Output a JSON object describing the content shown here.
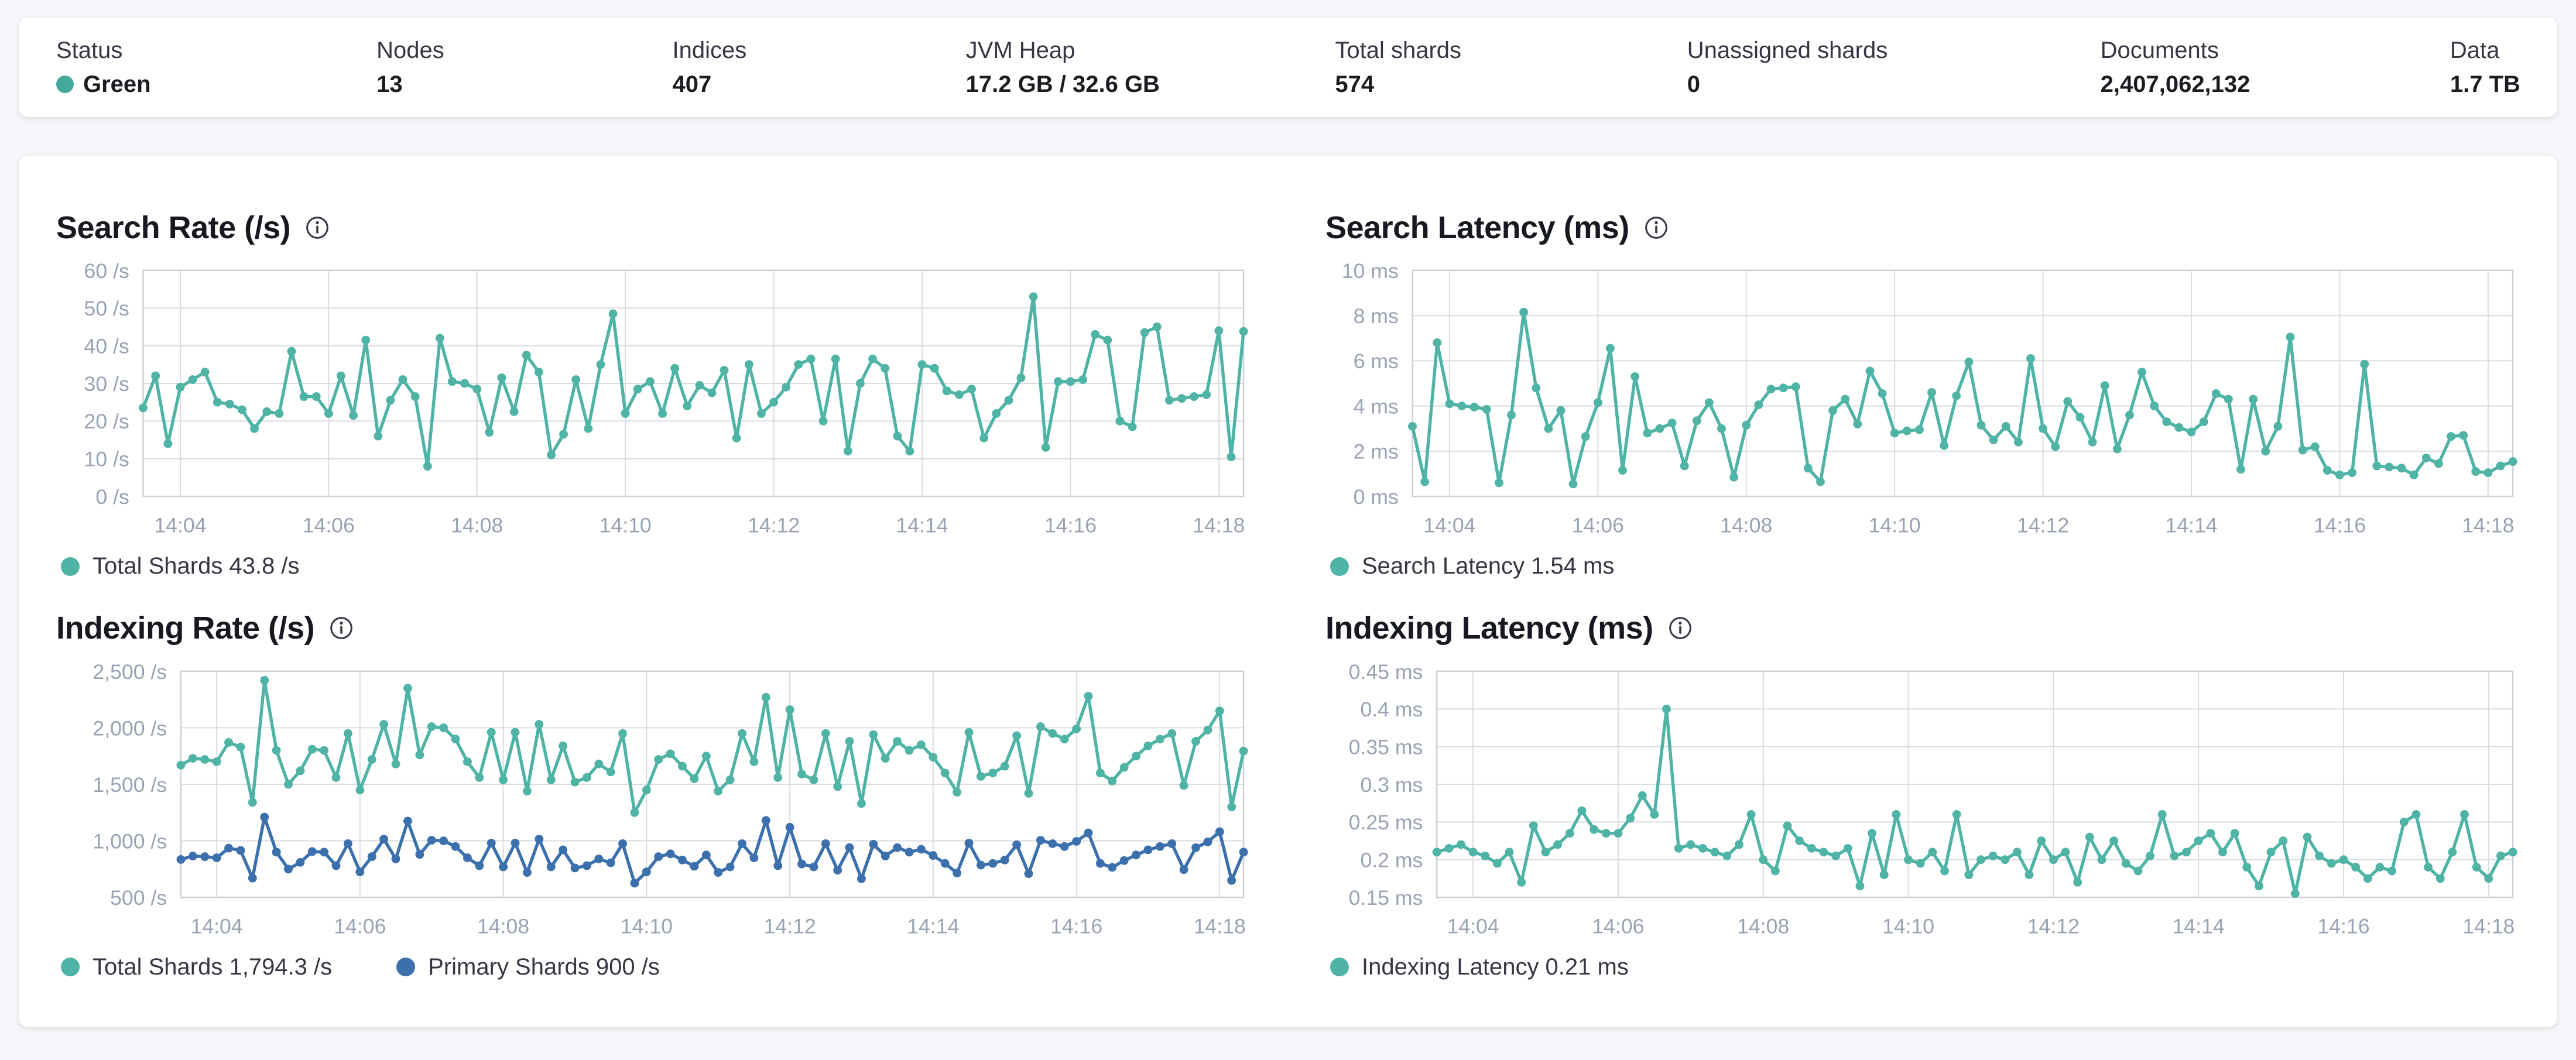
{
  "status_bar": {
    "items": [
      {
        "label": "Status",
        "value": "Green",
        "dot_color": "#45a99c"
      },
      {
        "label": "Nodes",
        "value": "13"
      },
      {
        "label": "Indices",
        "value": "407"
      },
      {
        "label": "JVM Heap",
        "value": "17.2 GB / 32.6 GB"
      },
      {
        "label": "Total shards",
        "value": "574"
      },
      {
        "label": "Unassigned shards",
        "value": "0"
      },
      {
        "label": "Documents",
        "value": "2,407,062,132"
      },
      {
        "label": "Data",
        "value": "1.7 TB"
      }
    ]
  },
  "chart_data": [
    {
      "type": "line",
      "title": "Search Rate (/s)",
      "ylim": [
        0,
        60
      ],
      "y_ticks": [
        0,
        10,
        20,
        30,
        40,
        50,
        60
      ],
      "y_tick_labels": [
        "0 /s",
        "10 /s",
        "20 /s",
        "30 /s",
        "40 /s",
        "50 /s",
        "60 /s"
      ],
      "x_ticks": [
        {
          "i": 3,
          "label": "14:04"
        },
        {
          "i": 15,
          "label": "14:06"
        },
        {
          "i": 27,
          "label": "14:08"
        },
        {
          "i": 39,
          "label": "14:10"
        },
        {
          "i": 51,
          "label": "14:12"
        },
        {
          "i": 63,
          "label": "14:14"
        },
        {
          "i": 75,
          "label": "14:16"
        },
        {
          "i": 87,
          "label": "14:18"
        }
      ],
      "grid": true,
      "legend_position": "bottom",
      "series": [
        {
          "name": "Total Shards",
          "legend_label": "Total Shards 43.8 /s",
          "color": "#4fb3a5",
          "values": [
            23.5,
            32,
            14,
            29,
            31,
            33,
            25,
            24.5,
            23,
            18,
            22.5,
            22,
            38.5,
            26.5,
            26.5,
            22,
            32,
            21.5,
            41.5,
            16,
            25.5,
            31,
            26.5,
            8,
            42,
            30.5,
            30,
            28.5,
            17,
            31.5,
            22.5,
            37.5,
            33,
            11,
            16.5,
            31,
            18,
            35,
            48.5,
            22,
            28.5,
            30.5,
            22,
            34,
            24,
            29.5,
            27.5,
            33.5,
            15.5,
            35,
            22,
            25,
            29,
            35,
            36.5,
            20,
            36.5,
            12,
            30,
            36.5,
            34,
            16,
            12,
            35,
            34,
            28,
            27,
            28.5,
            15.5,
            22,
            25.5,
            31.5,
            53,
            13,
            30.5,
            30.5,
            31,
            43,
            41.5,
            20,
            18.5,
            43.5,
            45,
            25.5,
            26,
            26.5,
            27,
            44,
            10.5,
            43.8
          ]
        }
      ]
    },
    {
      "type": "line",
      "title": "Search Latency (ms)",
      "ylim": [
        0,
        10
      ],
      "y_ticks": [
        0,
        2,
        4,
        6,
        8,
        10
      ],
      "y_tick_labels": [
        "0 ms",
        "2 ms",
        "4 ms",
        "6 ms",
        "8 ms",
        "10 ms"
      ],
      "x_ticks": [
        {
          "i": 3,
          "label": "14:04"
        },
        {
          "i": 15,
          "label": "14:06"
        },
        {
          "i": 27,
          "label": "14:08"
        },
        {
          "i": 39,
          "label": "14:10"
        },
        {
          "i": 51,
          "label": "14:12"
        },
        {
          "i": 63,
          "label": "14:14"
        },
        {
          "i": 75,
          "label": "14:16"
        },
        {
          "i": 87,
          "label": "14:18"
        }
      ],
      "grid": true,
      "legend_position": "bottom",
      "series": [
        {
          "name": "Search Latency",
          "legend_label": "Search Latency 1.54 ms",
          "color": "#4fb3a5",
          "values": [
            3.1,
            0.65,
            6.8,
            4.1,
            4.0,
            3.95,
            3.85,
            0.6,
            3.6,
            8.15,
            4.8,
            3.0,
            3.8,
            0.55,
            2.65,
            4.15,
            6.55,
            1.15,
            5.3,
            2.8,
            3.0,
            3.25,
            1.35,
            3.35,
            4.15,
            3.0,
            0.85,
            3.15,
            4.05,
            4.75,
            4.8,
            4.85,
            1.25,
            0.65,
            3.8,
            4.3,
            3.2,
            5.55,
            4.55,
            2.8,
            2.9,
            2.95,
            4.6,
            2.25,
            4.45,
            5.95,
            3.15,
            2.5,
            3.1,
            2.4,
            6.1,
            3.0,
            2.2,
            4.2,
            3.5,
            2.4,
            4.9,
            2.1,
            3.6,
            5.5,
            4.0,
            3.3,
            3.05,
            2.85,
            3.3,
            4.55,
            4.3,
            1.2,
            4.3,
            2.0,
            3.1,
            7.05,
            2.05,
            2.2,
            1.15,
            0.95,
            1.05,
            5.85,
            1.35,
            1.3,
            1.25,
            0.95,
            1.7,
            1.45,
            2.65,
            2.7,
            1.1,
            1.05,
            1.35,
            1.54
          ]
        }
      ]
    },
    {
      "type": "line",
      "title": "Indexing Rate (/s)",
      "ylim": [
        500,
        2500
      ],
      "y_ticks": [
        500,
        1000,
        1500,
        2000,
        2500
      ],
      "y_tick_labels": [
        "500 /s",
        "1,000 /s",
        "1,500 /s",
        "2,000 /s",
        "2,500 /s"
      ],
      "x_ticks": [
        {
          "i": 3,
          "label": "14:04"
        },
        {
          "i": 15,
          "label": "14:06"
        },
        {
          "i": 27,
          "label": "14:08"
        },
        {
          "i": 39,
          "label": "14:10"
        },
        {
          "i": 51,
          "label": "14:12"
        },
        {
          "i": 63,
          "label": "14:14"
        },
        {
          "i": 75,
          "label": "14:16"
        },
        {
          "i": 87,
          "label": "14:18"
        }
      ],
      "grid": true,
      "legend_position": "bottom",
      "series": [
        {
          "name": "Total Shards",
          "legend_label": "Total Shards 1,794.3 /s",
          "color": "#4fb3a5",
          "values": [
            1670,
            1730,
            1720,
            1700,
            1870,
            1830,
            1340,
            2420,
            1800,
            1500,
            1620,
            1810,
            1800,
            1560,
            1950,
            1450,
            1720,
            2030,
            1680,
            2350,
            1760,
            2010,
            2000,
            1900,
            1700,
            1560,
            1960,
            1540,
            1960,
            1440,
            2030,
            1540,
            1840,
            1520,
            1560,
            1680,
            1610,
            1950,
            1250,
            1450,
            1720,
            1770,
            1660,
            1550,
            1750,
            1440,
            1540,
            1950,
            1700,
            2270,
            1560,
            2160,
            1590,
            1540,
            1950,
            1480,
            1880,
            1330,
            1940,
            1730,
            1880,
            1800,
            1850,
            1740,
            1600,
            1430,
            1960,
            1570,
            1600,
            1660,
            1930,
            1420,
            2010,
            1950,
            1900,
            1990,
            2280,
            1600,
            1530,
            1650,
            1750,
            1840,
            1900,
            1950,
            1490,
            1880,
            1980,
            2150,
            1300,
            1794.3
          ]
        },
        {
          "name": "Primary Shards",
          "legend_label": "Primary Shards 900 /s",
          "color": "#3b70ad",
          "values": [
            835,
            865,
            860,
            850,
            935,
            915,
            670,
            1210,
            900,
            750,
            810,
            905,
            900,
            780,
            975,
            725,
            860,
            1015,
            840,
            1175,
            880,
            1005,
            1000,
            950,
            850,
            780,
            980,
            770,
            980,
            720,
            1015,
            770,
            920,
            760,
            780,
            840,
            805,
            975,
            625,
            725,
            860,
            885,
            830,
            775,
            875,
            720,
            770,
            975,
            850,
            1180,
            780,
            1120,
            795,
            770,
            975,
            740,
            940,
            665,
            970,
            865,
            940,
            900,
            925,
            870,
            800,
            715,
            980,
            785,
            800,
            830,
            965,
            710,
            1005,
            975,
            950,
            995,
            1070,
            800,
            765,
            825,
            875,
            920,
            950,
            975,
            745,
            940,
            990,
            1080,
            650,
            900
          ]
        }
      ]
    },
    {
      "type": "line",
      "title": "Indexing Latency (ms)",
      "ylim": [
        0.15,
        0.45
      ],
      "y_ticks": [
        0.15,
        0.2,
        0.25,
        0.3,
        0.35,
        0.4,
        0.45
      ],
      "y_tick_labels": [
        "0.15 ms",
        "0.2 ms",
        "0.25 ms",
        "0.3 ms",
        "0.35 ms",
        "0.4 ms",
        "0.45 ms"
      ],
      "x_ticks": [
        {
          "i": 3,
          "label": "14:04"
        },
        {
          "i": 15,
          "label": "14:06"
        },
        {
          "i": 27,
          "label": "14:08"
        },
        {
          "i": 39,
          "label": "14:10"
        },
        {
          "i": 51,
          "label": "14:12"
        },
        {
          "i": 63,
          "label": "14:14"
        },
        {
          "i": 75,
          "label": "14:16"
        },
        {
          "i": 87,
          "label": "14:18"
        }
      ],
      "grid": true,
      "legend_position": "bottom",
      "series": [
        {
          "name": "Indexing Latency",
          "legend_label": "Indexing Latency 0.21 ms",
          "color": "#4fb3a5",
          "values": [
            0.21,
            0.215,
            0.22,
            0.21,
            0.205,
            0.195,
            0.21,
            0.17,
            0.245,
            0.21,
            0.22,
            0.235,
            0.265,
            0.24,
            0.235,
            0.235,
            0.255,
            0.285,
            0.26,
            0.4,
            0.215,
            0.22,
            0.215,
            0.21,
            0.205,
            0.22,
            0.26,
            0.2,
            0.185,
            0.245,
            0.225,
            0.215,
            0.21,
            0.205,
            0.215,
            0.165,
            0.235,
            0.18,
            0.26,
            0.2,
            0.195,
            0.21,
            0.185,
            0.26,
            0.18,
            0.2,
            0.205,
            0.2,
            0.21,
            0.18,
            0.225,
            0.2,
            0.21,
            0.17,
            0.23,
            0.2,
            0.225,
            0.195,
            0.185,
            0.205,
            0.26,
            0.205,
            0.21,
            0.225,
            0.235,
            0.21,
            0.235,
            0.19,
            0.165,
            0.21,
            0.225,
            0.155,
            0.23,
            0.205,
            0.195,
            0.2,
            0.19,
            0.175,
            0.19,
            0.185,
            0.25,
            0.26,
            0.19,
            0.175,
            0.21,
            0.26,
            0.19,
            0.175,
            0.205,
            0.21
          ]
        }
      ]
    }
  ]
}
